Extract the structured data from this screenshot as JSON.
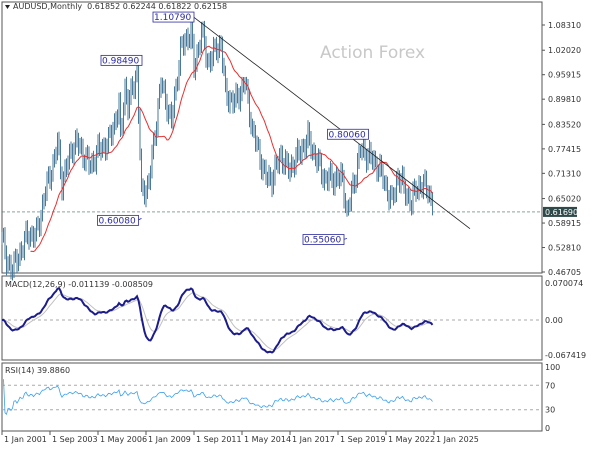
{
  "chart_data": {
    "type": "ohlc",
    "symbol_header": "AUDUSD,Monthly",
    "last_ohlc": "0.61852 0.62244 0.61822 0.62158",
    "watermark": "Action Forex",
    "current_price_label": "0.61690",
    "y_ticks": [
      "1.08310",
      "1.02020",
      "0.95915",
      "0.89810",
      "0.83520",
      "0.77415",
      "0.71310",
      "0.65020",
      "0.58915",
      "0.52810",
      "0.46705"
    ],
    "ylim": [
      0.46705,
      1.0831
    ],
    "x_ticks": [
      "1 Jan 2001",
      "1 Sep 2003",
      "1 May 2006",
      "1 Jan 2009",
      "1 Sep 2011",
      "1 May 2014",
      "1 Jan 2017",
      "1 Sep 2019",
      "1 May 2022",
      "1 Jan 2025"
    ],
    "price_series": [
      [
        "2001-01",
        0.555
      ],
      [
        "2001-04",
        0.49
      ],
      [
        "2001-09",
        0.48
      ],
      [
        "2002-06",
        0.56
      ],
      [
        "2002-12",
        0.56
      ],
      [
        "2003-06",
        0.67
      ],
      [
        "2003-12",
        0.75
      ],
      [
        "2004-02",
        0.79
      ],
      [
        "2004-05",
        0.69
      ],
      [
        "2004-12",
        0.78
      ],
      [
        "2005-03",
        0.79
      ],
      [
        "2005-12",
        0.73
      ],
      [
        "2006-05",
        0.77
      ],
      [
        "2006-12",
        0.79
      ],
      [
        "2007-07",
        0.88
      ],
      [
        "2007-08",
        0.8
      ],
      [
        "2007-11",
        0.93
      ],
      [
        "2008-01",
        0.88
      ],
      [
        "2008-07",
        0.97
      ],
      [
        "2008-10",
        0.66
      ],
      [
        "2009-03",
        0.69
      ],
      [
        "2009-11",
        0.94
      ],
      [
        "2010-06",
        0.84
      ],
      [
        "2010-12",
        1.02
      ],
      [
        "2011-07",
        1.07
      ],
      [
        "2011-09",
        0.97
      ],
      [
        "2012-02",
        1.07
      ],
      [
        "2012-06",
        0.99
      ],
      [
        "2013-03",
        1.04
      ],
      [
        "2013-06",
        0.91
      ],
      [
        "2013-12",
        0.89
      ],
      [
        "2014-07",
        0.94
      ],
      [
        "2014-12",
        0.82
      ],
      [
        "2015-09",
        0.7
      ],
      [
        "2016-01",
        0.7
      ],
      [
        "2016-07",
        0.76
      ],
      [
        "2016-12",
        0.72
      ],
      [
        "2018-01",
        0.8
      ],
      [
        "2018-12",
        0.7
      ],
      [
        "2019-12",
        0.7
      ],
      [
        "2020-03",
        0.61
      ],
      [
        "2020-12",
        0.77
      ],
      [
        "2021-02",
        0.77
      ],
      [
        "2021-12",
        0.73
      ],
      [
        "2022-09",
        0.64
      ],
      [
        "2023-01",
        0.71
      ],
      [
        "2023-10",
        0.635
      ],
      [
        "2024-01",
        0.68
      ],
      [
        "2024-09",
        0.68
      ],
      [
        "2024-12",
        0.622
      ]
    ],
    "annotations": [
      {
        "text": "1.10790",
        "date": "2011-07",
        "value": 1.1079
      },
      {
        "text": "0.98490",
        "date": "2008-07",
        "value": 0.9849
      },
      {
        "text": "0.60080",
        "date": "2008-10",
        "value": 0.6008
      },
      {
        "text": "0.55060",
        "date": "2020-03",
        "value": 0.5506
      },
      {
        "text": "0.80060",
        "date": "2021-02",
        "value": 0.8006
      }
    ],
    "trendline": [
      [
        "2011-07",
        1.1079
      ],
      [
        "2027-01",
        0.575
      ]
    ],
    "moving_average_color": "#e83030",
    "bar_color": "#4a7a9a",
    "macd": {
      "label": "MACD(12,26,9) -0.011139 -0.008509",
      "y_ticks": [
        "0.070074",
        "0.00",
        "-0.067419"
      ],
      "ylim": [
        -0.067419,
        0.070074
      ],
      "main_color": "#1c1c8c",
      "signal_color": "#c0c0c0"
    },
    "rsi": {
      "label": "RSI(14) 39.8860",
      "y_ticks": [
        "100",
        "70",
        "30",
        "0"
      ],
      "levels": [
        70,
        30
      ],
      "color": "#3aa0f0"
    }
  }
}
